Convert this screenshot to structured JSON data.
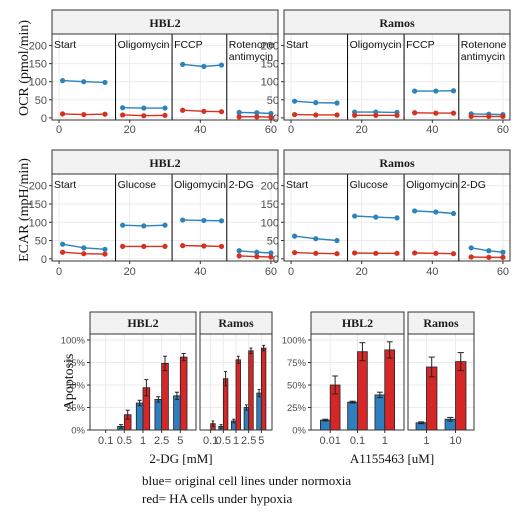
{
  "colors": {
    "blue": "#2b83ba",
    "red": "#d7301f",
    "bar_blue": "#2f7fbf",
    "bar_red": "#d62728",
    "panel_border": "#333333",
    "strip_bg": "#f2f2f2",
    "grid": "#ebebeb",
    "phase_line": "#000000"
  },
  "caption": {
    "line1": "blue= original cell lines under normoxia",
    "line2": "red= HA cells under hypoxia"
  },
  "chart_data": [
    {
      "id": "ocr",
      "type": "line",
      "ylabel": "OCR (pmol/min)",
      "xlim": [
        -2,
        62
      ],
      "ylim": [
        -6,
        232
      ],
      "xticks": [
        0,
        20,
        40,
        60
      ],
      "yticks": [
        0,
        50,
        100,
        150,
        200
      ],
      "phase_lines": [
        16,
        32,
        47.5
      ],
      "panels": [
        {
          "title": "HBL2",
          "phases": [
            "Start",
            "Oligomycin",
            "FCCP",
            "Rotenone",
            "antimycin"
          ],
          "series": [
            {
              "color": "blue",
              "x": [
                1,
                7,
                13,
                18,
                24,
                30,
                35,
                41,
                46,
                51,
                56,
                60
              ],
              "y": [
                103,
                100,
                98,
                28,
                27,
                27,
                148,
                142,
                146,
                15,
                14,
                12
              ]
            },
            {
              "color": "red",
              "x": [
                1,
                7,
                13,
                18,
                24,
                30,
                35,
                41,
                46,
                51,
                56,
                60
              ],
              "y": [
                11,
                9,
                10,
                8,
                6,
                7,
                21,
                18,
                17,
                3,
                3,
                2
              ]
            }
          ]
        },
        {
          "title": "Ramos",
          "phases": [
            "Start",
            "Oligomycin",
            "FCCP",
            "Rotenone",
            "antimycin"
          ],
          "series": [
            {
              "color": "blue",
              "x": [
                1,
                7,
                13,
                18,
                24,
                30,
                35,
                41,
                46,
                51,
                56,
                60
              ],
              "y": [
                46,
                42,
                41,
                16,
                16,
                15,
                74,
                74,
                75,
                11,
                10,
                9
              ]
            },
            {
              "color": "red",
              "x": [
                1,
                7,
                13,
                18,
                24,
                30,
                35,
                41,
                46,
                51,
                56,
                60
              ],
              "y": [
                9,
                8,
                8,
                7,
                7,
                7,
                14,
                13,
                13,
                4,
                4,
                4
              ]
            }
          ]
        }
      ]
    },
    {
      "id": "ecar",
      "type": "line",
      "ylabel": "ECAR (mpH/min)",
      "xlim": [
        -2,
        62
      ],
      "ylim": [
        -6,
        232
      ],
      "xticks": [
        0,
        20,
        40,
        60
      ],
      "yticks": [
        0,
        50,
        100,
        150,
        200
      ],
      "phase_lines": [
        16,
        32,
        47.5
      ],
      "panels": [
        {
          "title": "HBL2",
          "phases": [
            "Start",
            "Glucose",
            "Oligomycin",
            "2-DG"
          ],
          "series": [
            {
              "color": "blue",
              "x": [
                1,
                7,
                13,
                18,
                24,
                30,
                35,
                41,
                46,
                51,
                56,
                60
              ],
              "y": [
                40,
                30,
                26,
                92,
                90,
                92,
                106,
                105,
                104,
                22,
                18,
                16
              ]
            },
            {
              "color": "red",
              "x": [
                1,
                7,
                13,
                18,
                24,
                30,
                35,
                41,
                46,
                51,
                56,
                60
              ],
              "y": [
                18,
                14,
                13,
                34,
                34,
                34,
                36,
                35,
                34,
                8,
                6,
                5
              ]
            }
          ]
        },
        {
          "title": "Ramos",
          "phases": [
            "Start",
            "Glucose",
            "Oligomycin",
            "2-DG"
          ],
          "series": [
            {
              "color": "blue",
              "x": [
                1,
                7,
                13,
                18,
                24,
                30,
                35,
                41,
                46,
                51,
                56,
                60
              ],
              "y": [
                62,
                55,
                50,
                117,
                114,
                112,
                131,
                128,
                124,
                30,
                22,
                18
              ]
            },
            {
              "color": "red",
              "x": [
                1,
                7,
                13,
                18,
                24,
                30,
                35,
                41,
                46,
                51,
                56,
                60
              ],
              "y": [
                17,
                15,
                14,
                16,
                15,
                15,
                16,
                15,
                14,
                5,
                4,
                4
              ]
            }
          ]
        }
      ]
    },
    {
      "id": "apop_2dg",
      "type": "bar",
      "ylabel": "Apoptosis",
      "xlabel": "2-DG [mM]",
      "ylim": [
        0,
        1.0
      ],
      "yticks": [
        "0%",
        "25%",
        "50%",
        "75%",
        "100%"
      ],
      "panels": [
        {
          "title": "HBL2",
          "categories": [
            "0.1",
            "0.5",
            "1",
            "2.5",
            "5"
          ],
          "series": [
            {
              "color": "bar_blue",
              "values": [
                0.0,
                0.04,
                0.3,
                0.34,
                0.38
              ],
              "errors": [
                0.0,
                0.02,
                0.03,
                0.03,
                0.04
              ]
            },
            {
              "color": "bar_red",
              "values": [
                0.0,
                0.17,
                0.47,
                0.74,
                0.81
              ],
              "errors": [
                0.0,
                0.05,
                0.09,
                0.08,
                0.04
              ]
            }
          ]
        },
        {
          "title": "Ramos",
          "categories": [
            "0.1",
            "0.5",
            "1",
            "2.5",
            "5"
          ],
          "series": [
            {
              "color": "bar_blue",
              "values": [
                0.0,
                0.04,
                0.1,
                0.25,
                0.41
              ],
              "errors": [
                0.0,
                0.02,
                0.02,
                0.03,
                0.04
              ]
            },
            {
              "color": "bar_red",
              "values": [
                0.07,
                0.57,
                0.78,
                0.88,
                0.91
              ],
              "errors": [
                0.03,
                0.08,
                0.04,
                0.03,
                0.03
              ]
            }
          ]
        }
      ]
    },
    {
      "id": "apop_a115",
      "type": "bar",
      "ylabel": "",
      "xlabel": "A1155463 [uM]",
      "ylim": [
        0,
        1.0
      ],
      "yticks": [
        "0%",
        "25%",
        "50%",
        "75%",
        "100%"
      ],
      "panels": [
        {
          "title": "HBL2",
          "categories": [
            "0.01",
            "0.1",
            "1"
          ],
          "series": [
            {
              "color": "bar_blue",
              "values": [
                0.11,
                0.31,
                0.39
              ],
              "errors": [
                0.01,
                0.01,
                0.03
              ]
            },
            {
              "color": "bar_red",
              "values": [
                0.5,
                0.87,
                0.89
              ],
              "errors": [
                0.1,
                0.1,
                0.09
              ]
            }
          ]
        },
        {
          "title": "Ramos",
          "categories": [
            "1",
            "10"
          ],
          "series": [
            {
              "color": "bar_blue",
              "values": [
                0.08,
                0.12
              ],
              "errors": [
                0.01,
                0.02
              ]
            },
            {
              "color": "bar_red",
              "values": [
                0.7,
                0.76
              ],
              "errors": [
                0.11,
                0.1
              ]
            }
          ]
        }
      ]
    }
  ]
}
